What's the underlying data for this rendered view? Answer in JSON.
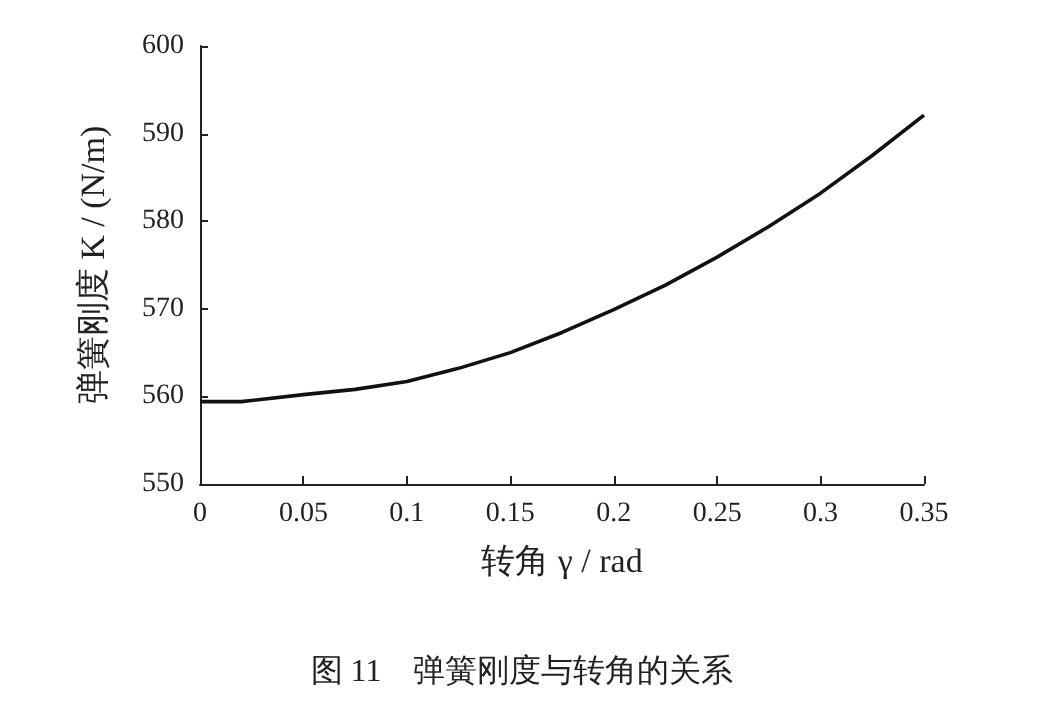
{
  "chart_data": {
    "type": "line",
    "xlabel": "转角 γ / rad",
    "ylabel": "弹簧刚度 K / (N/m)",
    "annotations": [
      "图 11　弹簧刚度与转角的关系"
    ],
    "x": [
      0,
      0.02,
      0.05,
      0.075,
      0.1,
      0.125,
      0.15,
      0.175,
      0.2,
      0.225,
      0.25,
      0.275,
      0.3,
      0.325,
      0.35
    ],
    "series": [
      {
        "color": "#111111",
        "values": [
          559.4,
          559.4,
          560.2,
          560.8,
          561.7,
          563.2,
          565.0,
          567.3,
          569.9,
          572.7,
          575.9,
          579.4,
          583.2,
          587.5,
          592.1
        ]
      }
    ],
    "xlim": [
      0,
      0.35
    ],
    "xticks": [
      0,
      0.05,
      0.1,
      0.15,
      0.2,
      0.25,
      0.3,
      0.35
    ],
    "ylim": [
      550,
      600
    ],
    "yticks": [
      550,
      560,
      570,
      580,
      590,
      600
    ],
    "grid": false,
    "marker": "none",
    "line_style": "solid"
  }
}
